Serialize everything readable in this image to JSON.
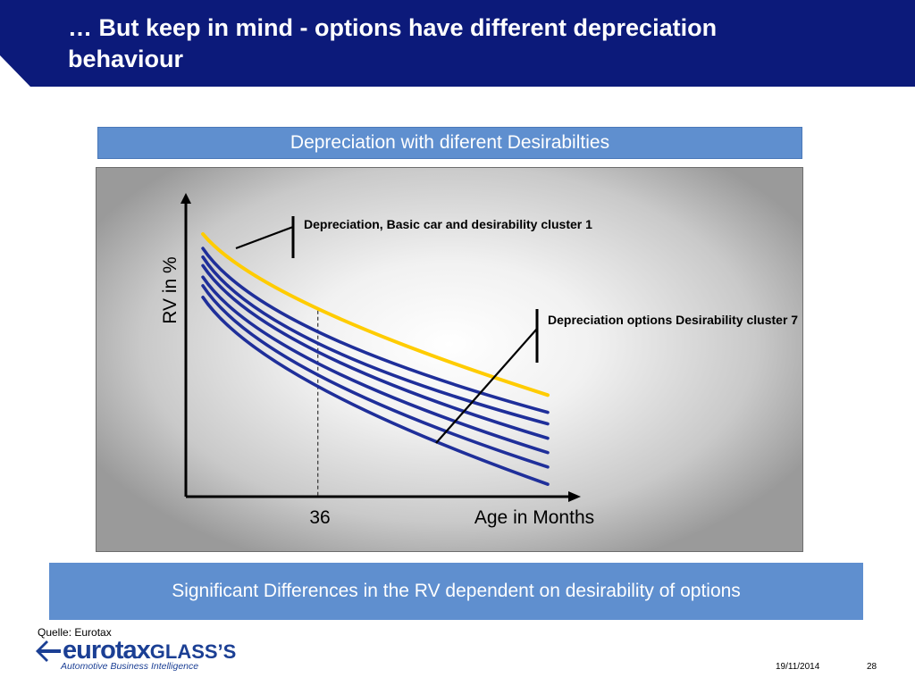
{
  "slide": {
    "title": "… But keep in mind - options have different depreciation behaviour",
    "summary": "Significant Differences in the RV dependent on desirability of options",
    "source": "Quelle: Eurotax",
    "date": "19/11/2014",
    "page_number": "28",
    "logo_text": "eurotax",
    "logo_text_b": "GLASS’S",
    "logo_tagline": "Automotive Business Intelligence"
  },
  "colors": {
    "header": "#0c1a7a",
    "band": "#5f8fcf",
    "highlight_curve": "#ffcc00",
    "option_curves": "#1f2f9a"
  },
  "chart_data": {
    "type": "line",
    "title": "Depreciation with diferent Desirabilties",
    "xlabel": "Age in Months",
    "ylabel": "RV in %",
    "x_ticks": [
      {
        "value": 36,
        "label": "36"
      }
    ],
    "x_range": [
      0,
      100
    ],
    "y_range": [
      0,
      100
    ],
    "axis_numbers_shown": false,
    "grid": false,
    "annotations": [
      "Depreciation, Basic car and desirability cluster 1",
      "Depreciation options Desirability cluster 7"
    ],
    "series": [
      {
        "color": "#ffcc00",
        "x": [
          4,
          36,
          100
        ],
        "y": [
          91,
          65,
          35
        ]
      },
      {
        "color": "#1f2f9a",
        "x": [
          4,
          36,
          100
        ],
        "y": [
          86,
          57,
          29
        ]
      },
      {
        "color": "#1f2f9a",
        "x": [
          4,
          36,
          100
        ],
        "y": [
          83,
          53,
          25
        ]
      },
      {
        "color": "#1f2f9a",
        "x": [
          4,
          36,
          100
        ],
        "y": [
          80,
          50,
          20
        ]
      },
      {
        "color": "#1f2f9a",
        "x": [
          4,
          36,
          100
        ],
        "y": [
          76,
          46,
          15
        ]
      },
      {
        "color": "#1f2f9a",
        "x": [
          4,
          36,
          100
        ],
        "y": [
          73,
          42,
          10
        ]
      },
      {
        "color": "#1f2f9a",
        "x": [
          4,
          36,
          100
        ],
        "y": [
          69,
          38,
          4
        ]
      }
    ]
  }
}
